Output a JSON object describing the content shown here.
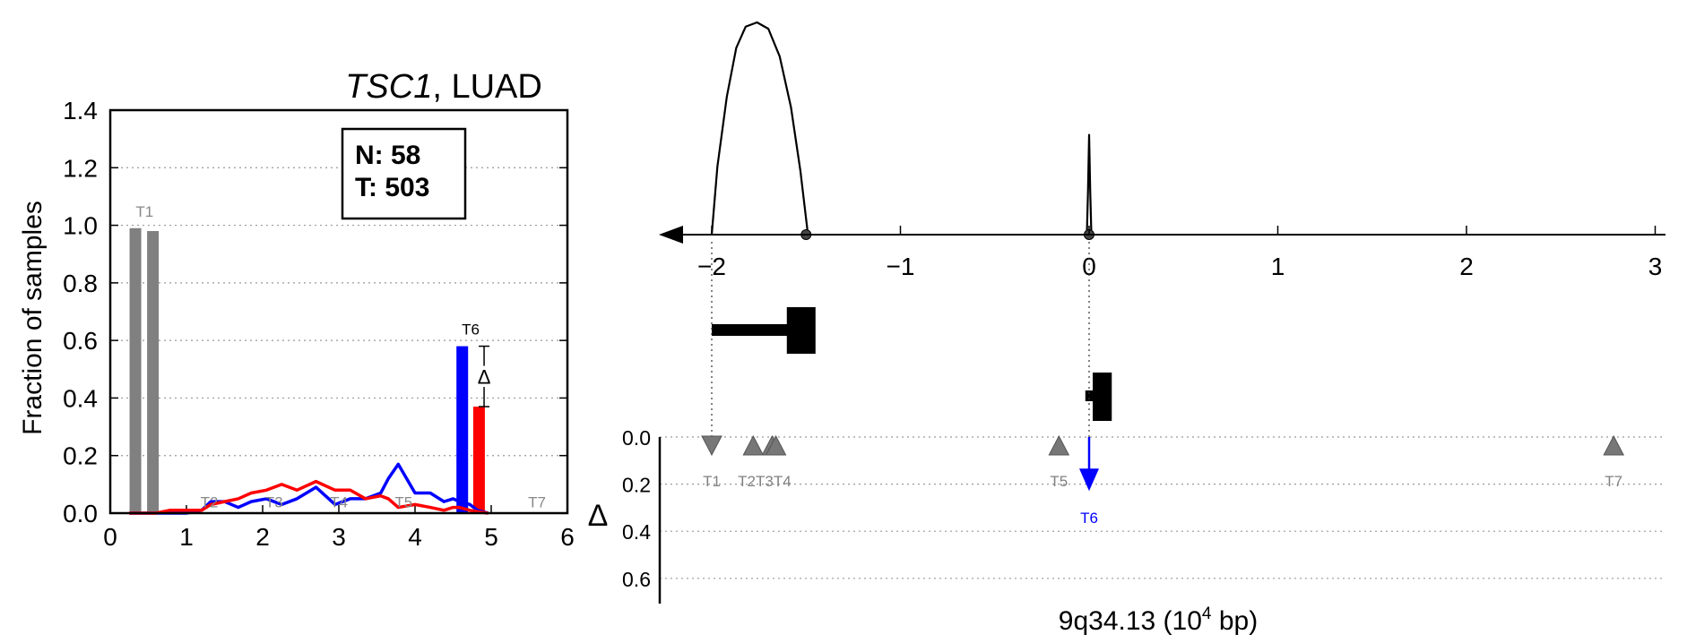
{
  "left_panel": {
    "title_gene": "TSC1",
    "title_rest": ", LUAD",
    "ylabel": "Fraction of samples",
    "legend_n": "N: 58",
    "legend_t": "T: 503",
    "delta_symbol": "Δ"
  },
  "right_panel": {
    "xlabel_main": "9q34.13 (10",
    "xlabel_sup": "4",
    "xlabel_end": " bp)",
    "delta_axis_label": "Δ"
  },
  "chart_data": [
    {
      "type": "bar",
      "title": "TSC1, LUAD",
      "xlabel": "",
      "ylabel": "Fraction of samples",
      "xlim": [
        0,
        6
      ],
      "ylim": [
        0,
        1.4
      ],
      "xticks": [
        0,
        1,
        2,
        3,
        4,
        5,
        6
      ],
      "yticks": [
        0.0,
        0.2,
        0.4,
        0.6,
        0.8,
        1.0,
        1.2,
        1.4
      ],
      "ytick_labels": [
        "0.0",
        "0.2",
        "0.4",
        "0.6",
        "0.8",
        "1.0",
        "1.2",
        "1.4"
      ],
      "grid": "horizontal dotted",
      "legend": "top-right",
      "colors": {
        "normal": "#0000ff",
        "tumor": "#ff0000",
        "t1": "#808080",
        "label_gray": "#888888"
      },
      "t1_bars": [
        {
          "x": 0.33,
          "value": 0.99
        },
        {
          "x": 0.56,
          "value": 0.98
        }
      ],
      "t6_bars": [
        {
          "series": "N",
          "x": 4.62,
          "value": 0.58
        },
        {
          "series": "T",
          "x": 4.84,
          "value": 0.37
        }
      ],
      "region_labels": [
        {
          "label": "T1",
          "x": 0.45,
          "y": 1.03,
          "color": "gray"
        },
        {
          "label": "T2",
          "x": 1.3,
          "y": 0.02,
          "color": "gray"
        },
        {
          "label": "T3",
          "x": 2.15,
          "y": 0.02,
          "color": "gray"
        },
        {
          "label": "T4",
          "x": 3.0,
          "y": 0.02,
          "color": "gray"
        },
        {
          "label": "T5",
          "x": 3.85,
          "y": 0.02,
          "color": "gray"
        },
        {
          "label": "T6",
          "x": 4.73,
          "y": 0.62,
          "color": "black"
        },
        {
          "label": "T7",
          "x": 5.6,
          "y": 0.02,
          "color": "gray"
        }
      ],
      "series": [
        {
          "name": "N",
          "color": "#0000ff",
          "x": [
            0.25,
            0.42,
            0.6,
            0.78,
            1.0,
            1.2,
            1.32,
            1.5,
            1.68,
            1.85,
            2.05,
            2.25,
            2.45,
            2.7,
            2.95,
            3.15,
            3.35,
            3.55,
            3.65,
            3.78,
            4.0,
            4.2,
            4.38,
            4.5,
            4.58,
            4.72,
            4.82,
            4.96
          ],
          "y": [
            0.0,
            0.0,
            0.0,
            0.0,
            0.0,
            0.01,
            0.04,
            0.04,
            0.02,
            0.04,
            0.05,
            0.03,
            0.05,
            0.09,
            0.03,
            0.05,
            0.05,
            0.07,
            0.12,
            0.17,
            0.07,
            0.07,
            0.04,
            0.05,
            0.04,
            0.03,
            0.01,
            0.0
          ]
        },
        {
          "name": "T",
          "color": "#ff0000",
          "x": [
            0.25,
            0.42,
            0.6,
            0.78,
            1.0,
            1.2,
            1.32,
            1.5,
            1.68,
            1.85,
            2.05,
            2.25,
            2.45,
            2.7,
            2.95,
            3.15,
            3.35,
            3.55,
            3.65,
            3.78,
            4.0,
            4.2,
            4.38,
            4.5,
            4.58,
            4.72,
            4.82,
            4.96
          ],
          "y": [
            0.0,
            0.0,
            0.0,
            0.01,
            0.01,
            0.01,
            0.03,
            0.04,
            0.05,
            0.07,
            0.08,
            0.1,
            0.08,
            0.11,
            0.08,
            0.08,
            0.05,
            0.06,
            0.05,
            0.02,
            0.03,
            0.02,
            0.01,
            0.02,
            0.02,
            0.01,
            0.005,
            0.0
          ]
        }
      ],
      "delta_marker": {
        "x": 4.73,
        "y_top": 0.58,
        "y_bottom": 0.37,
        "label": "Δ"
      }
    },
    {
      "type": "line",
      "xlim": [
        -2.0,
        3.0
      ],
      "xticks": [
        -2,
        -1,
        0,
        1,
        2,
        3
      ],
      "xtick_labels": [
        "−2",
        "−1",
        "0",
        "1",
        "2",
        "3"
      ],
      "xlabel": "9q34.13 (10^4 bp)",
      "direction_arrow": "left",
      "peaks": [
        {
          "x": [
            -2.0,
            -1.97,
            -1.92,
            -1.87,
            -1.82,
            -1.76,
            -1.7,
            -1.64,
            -1.58,
            -1.53,
            -1.49
          ],
          "y": [
            0.0,
            0.32,
            0.65,
            0.88,
            0.98,
            1.0,
            0.97,
            0.84,
            0.6,
            0.3,
            0.0
          ]
        },
        {
          "x": [
            -0.012,
            -0.006,
            0.0,
            0.006,
            0.012
          ],
          "y": [
            0.0,
            0.2,
            0.47,
            0.2,
            0.0
          ]
        }
      ],
      "peak_markers": [
        -1.5,
        0.0
      ],
      "gene_models": [
        {
          "x_start": -2.0,
          "x_end": -1.45,
          "y_level": 1,
          "thick_start": -1.64,
          "thick_end": -1.45
        },
        {
          "x_start": -0.02,
          "x_end": 0.12,
          "y_level": 2,
          "thick_start": 0.0,
          "thick_end": 0.12
        }
      ],
      "dotted_links": [
        -2.0,
        0.0
      ]
    },
    {
      "type": "scatter",
      "ylabel": "Δ",
      "ylim": [
        0.0,
        0.7
      ],
      "yticks": [
        0.0,
        0.2,
        0.4,
        0.6
      ],
      "ytick_labels": [
        "0.0",
        "0.2",
        "0.4",
        "0.6"
      ],
      "grid": "horizontal dotted",
      "markers": [
        {
          "label": "T1",
          "x": -2.0,
          "delta": 0.0,
          "shape": "triangle-down",
          "color": "gray"
        },
        {
          "label": "T2",
          "x": -1.78,
          "delta": 0.0,
          "shape": "triangle-up",
          "color": "gray"
        },
        {
          "label": "T3",
          "x": -1.68,
          "delta": 0.0,
          "shape": "triangle-up",
          "color": "gray"
        },
        {
          "label": "T4",
          "x": -1.66,
          "delta": 0.0,
          "shape": "triangle-up",
          "color": "gray"
        },
        {
          "label": "T5",
          "x": -0.16,
          "delta": 0.0,
          "shape": "triangle-up",
          "color": "gray"
        },
        {
          "label": "T6",
          "x": 0.0,
          "delta": 0.21,
          "shape": "arrow-down",
          "color": "blue"
        },
        {
          "label": "T7",
          "x": 2.78,
          "delta": 0.0,
          "shape": "triangle-up",
          "color": "gray"
        }
      ],
      "label_texts": {
        "t1": "T1",
        "t2t3t4": "T2T3T4",
        "t5": "T5",
        "t6": "T6",
        "t7": "T7"
      }
    }
  ]
}
